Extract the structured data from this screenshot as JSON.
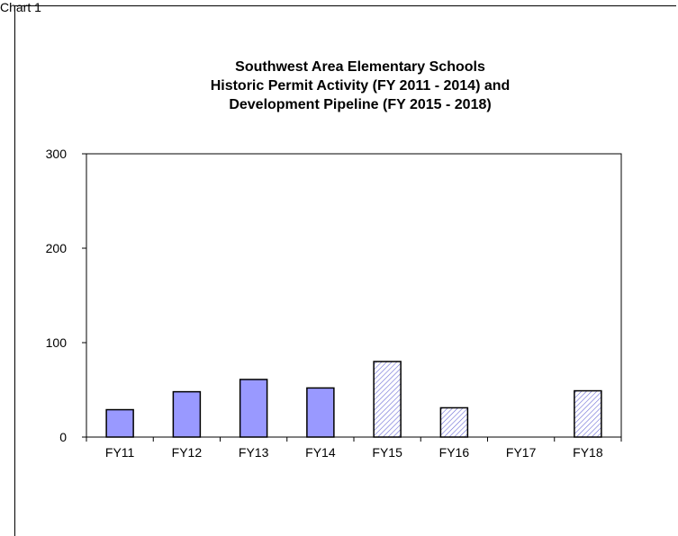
{
  "page_label": "Chart 1",
  "chart_data": {
    "type": "bar",
    "title": "Southwest Area Elementary Schools",
    "title_lines": [
      "Southwest Area Elementary Schools",
      "Historic Permit Activity (FY 2011 - 2014) and",
      "Development Pipeline (FY 2015 - 2018)"
    ],
    "xlabel": "",
    "ylabel": "",
    "categories": [
      "FY11",
      "FY12",
      "FY13",
      "FY14",
      "FY15",
      "FY16",
      "FY17",
      "FY18"
    ],
    "values": [
      29,
      48,
      61,
      52,
      80,
      31,
      0,
      49
    ],
    "bar_style": [
      "solid",
      "solid",
      "solid",
      "solid",
      "hatched",
      "hatched",
      "hatched",
      "hatched"
    ],
    "ylim": [
      0,
      300
    ],
    "yticks": [
      0,
      100,
      200,
      300
    ],
    "grid": false,
    "legend": "none",
    "colors": {
      "solid": "#9999ff",
      "hatch": "#6b6bd6",
      "border": "#000000"
    }
  }
}
